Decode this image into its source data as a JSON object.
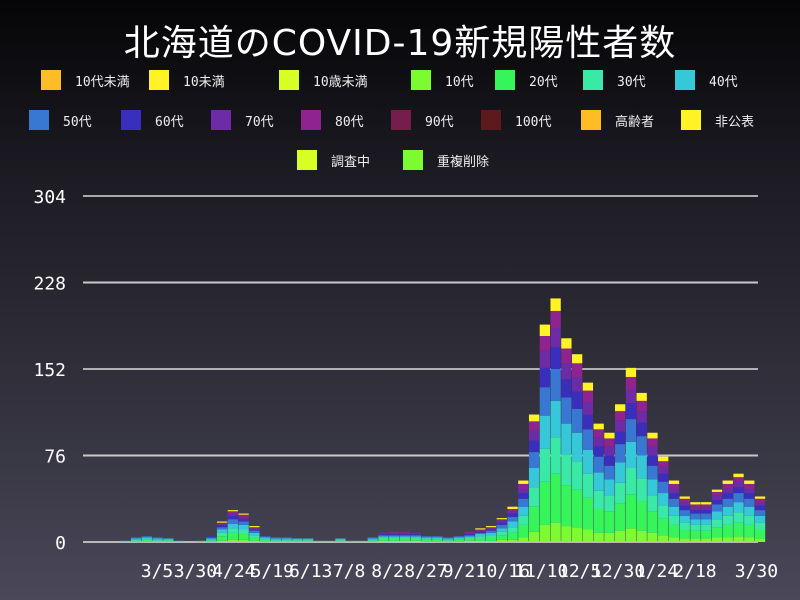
{
  "chart_data": {
    "type": "bar",
    "stacked": true,
    "title": "北海道のCOVID-19新規陽性者数",
    "ylim": [
      0,
      304
    ],
    "yticks": [
      0,
      76,
      152,
      228,
      304
    ],
    "xticks": [
      "3/5",
      "3/30",
      "4/24",
      "5/19",
      "6/13",
      "7/8",
      "8/2",
      "8/27",
      "9/21",
      "10/16",
      "11/10",
      "12/5",
      "12/30",
      "1/24",
      "2/18",
      "3/30"
    ],
    "xtick_dates": [
      "2020-03-05",
      "2020-03-30",
      "2020-04-24",
      "2020-05-19",
      "2020-06-13",
      "2020-07-08",
      "2020-08-02",
      "2020-08-27",
      "2020-09-21",
      "2020-10-16",
      "2020-11-10",
      "2020-12-05",
      "2020-12-30",
      "2021-01-24",
      "2021-02-18",
      "2021-03-30"
    ],
    "grid": true,
    "legend_placement": "top",
    "legend": [
      {
        "name": "10代未満",
        "color": "#ffbd25"
      },
      {
        "name": "10未満",
        "color": "#fff325"
      },
      {
        "name": "10歳未満",
        "color": "#d8ff25"
      },
      {
        "name": "10代",
        "color": "#7cfc30"
      },
      {
        "name": "20代",
        "color": "#36f55a"
      },
      {
        "name": "30代",
        "color": "#3be9a7"
      },
      {
        "name": "40代",
        "color": "#36c8d8"
      },
      {
        "name": "50代",
        "color": "#3878d2"
      },
      {
        "name": "60代",
        "color": "#3a2fbd"
      },
      {
        "name": "70代",
        "color": "#6e2ba6"
      },
      {
        "name": "80代",
        "color": "#8f2490"
      },
      {
        "name": "90代",
        "color": "#761d4c"
      },
      {
        "name": "100代",
        "color": "#5c1a1c"
      },
      {
        "name": "高齢者",
        "color": "#ffbd25"
      },
      {
        "name": "非公表",
        "color": "#fff325"
      },
      {
        "name": "調査中",
        "color": "#d8ff25"
      },
      {
        "name": "重複削除",
        "color": "#7cfc30"
      }
    ],
    "x": [
      "2020-01-27",
      "2020-02-03",
      "2020-02-10",
      "2020-02-17",
      "2020-02-24",
      "2020-03-02",
      "2020-03-09",
      "2020-03-16",
      "2020-03-23",
      "2020-03-30",
      "2020-04-06",
      "2020-04-13",
      "2020-04-20",
      "2020-04-27",
      "2020-05-04",
      "2020-05-11",
      "2020-05-18",
      "2020-05-25",
      "2020-06-01",
      "2020-06-08",
      "2020-06-15",
      "2020-06-22",
      "2020-06-29",
      "2020-07-06",
      "2020-07-13",
      "2020-07-20",
      "2020-07-27",
      "2020-08-03",
      "2020-08-10",
      "2020-08-17",
      "2020-08-24",
      "2020-08-31",
      "2020-09-07",
      "2020-09-14",
      "2020-09-21",
      "2020-09-28",
      "2020-10-05",
      "2020-10-12",
      "2020-10-19",
      "2020-10-26",
      "2020-11-02",
      "2020-11-09",
      "2020-11-16",
      "2020-11-23",
      "2020-11-30",
      "2020-12-07",
      "2020-12-14",
      "2020-12-21",
      "2020-12-28",
      "2021-01-04",
      "2021-01-11",
      "2021-01-18",
      "2021-01-25",
      "2021-02-01",
      "2021-02-08",
      "2021-02-15",
      "2021-02-22",
      "2021-03-01",
      "2021-03-08",
      "2021-03-15",
      "2021-03-22",
      "2021-03-29"
    ],
    "series": [
      {
        "name": "10代",
        "color": "#7cfc30",
        "values": [
          0,
          0,
          0,
          0,
          0,
          0,
          0,
          0,
          0,
          0,
          0,
          1,
          2,
          2,
          1,
          0,
          0,
          0,
          0,
          0,
          0,
          0,
          0,
          0,
          0,
          0,
          1,
          1,
          1,
          1,
          0,
          0,
          0,
          0,
          1,
          1,
          1,
          2,
          2,
          4,
          9,
          15,
          17,
          14,
          13,
          11,
          8,
          8,
          10,
          12,
          10,
          8,
          6,
          4,
          3,
          3,
          3,
          4,
          4,
          5,
          4,
          3
        ]
      },
      {
        "name": "20代",
        "color": "#36f55a",
        "values": [
          0,
          0,
          1,
          1,
          2,
          1,
          1,
          1,
          0,
          1,
          1,
          4,
          6,
          5,
          3,
          2,
          1,
          1,
          1,
          1,
          1,
          1,
          1,
          1,
          1,
          1,
          2,
          2,
          2,
          2,
          2,
          2,
          1,
          2,
          2,
          2,
          3,
          4,
          6,
          11,
          22,
          38,
          43,
          36,
          33,
          28,
          21,
          19,
          24,
          30,
          26,
          19,
          15,
          11,
          8,
          7,
          7,
          9,
          11,
          12,
          11,
          8
        ]
      },
      {
        "name": "30代",
        "color": "#3be9a7",
        "values": [
          0,
          0,
          0,
          1,
          1,
          1,
          1,
          0,
          0,
          0,
          1,
          3,
          4,
          4,
          2,
          1,
          1,
          1,
          1,
          1,
          0,
          0,
          1,
          0,
          0,
          1,
          1,
          1,
          1,
          1,
          1,
          1,
          1,
          1,
          1,
          2,
          2,
          3,
          5,
          8,
          17,
          29,
          32,
          27,
          25,
          21,
          16,
          14,
          18,
          23,
          20,
          14,
          11,
          8,
          6,
          5,
          5,
          7,
          8,
          9,
          8,
          6
        ]
      },
      {
        "name": "40代",
        "color": "#36c8d8",
        "values": [
          0,
          0,
          0,
          1,
          1,
          1,
          1,
          0,
          0,
          0,
          1,
          3,
          4,
          4,
          2,
          1,
          1,
          1,
          1,
          1,
          0,
          0,
          1,
          0,
          0,
          1,
          1,
          1,
          1,
          1,
          1,
          1,
          1,
          1,
          1,
          2,
          2,
          3,
          5,
          8,
          17,
          29,
          32,
          27,
          25,
          21,
          16,
          14,
          18,
          23,
          20,
          14,
          11,
          8,
          6,
          5,
          5,
          7,
          8,
          9,
          8,
          6
        ]
      },
      {
        "name": "50代",
        "color": "#3878d2",
        "values": [
          0,
          0,
          0,
          1,
          1,
          1,
          0,
          0,
          0,
          0,
          1,
          2,
          4,
          3,
          2,
          1,
          1,
          1,
          0,
          0,
          0,
          0,
          0,
          0,
          0,
          1,
          1,
          1,
          1,
          1,
          1,
          1,
          1,
          1,
          1,
          1,
          2,
          3,
          4,
          7,
          14,
          25,
          28,
          23,
          21,
          18,
          14,
          12,
          16,
          20,
          17,
          12,
          10,
          7,
          5,
          5,
          5,
          6,
          7,
          8,
          7,
          5
        ]
      },
      {
        "name": "60代",
        "color": "#3a2fbd",
        "values": [
          0,
          0,
          0,
          0,
          0,
          0,
          0,
          0,
          0,
          0,
          1,
          2,
          3,
          2,
          1,
          1,
          0,
          0,
          0,
          0,
          0,
          0,
          0,
          0,
          0,
          0,
          1,
          1,
          1,
          1,
          0,
          0,
          0,
          0,
          1,
          1,
          1,
          2,
          3,
          5,
          10,
          17,
          19,
          16,
          15,
          13,
          9,
          9,
          11,
          14,
          12,
          9,
          7,
          5,
          4,
          3,
          3,
          4,
          5,
          5,
          5,
          4
        ]
      },
      {
        "name": "70代",
        "color": "#6e2ba6",
        "values": [
          0,
          0,
          0,
          0,
          0,
          0,
          0,
          0,
          0,
          0,
          0,
          1,
          2,
          2,
          1,
          0,
          0,
          0,
          0,
          0,
          0,
          0,
          0,
          0,
          0,
          0,
          1,
          1,
          1,
          1,
          0,
          0,
          0,
          0,
          1,
          1,
          1,
          2,
          2,
          4,
          9,
          15,
          17,
          14,
          13,
          11,
          8,
          8,
          10,
          12,
          10,
          8,
          6,
          4,
          3,
          3,
          3,
          4,
          4,
          5,
          4,
          3
        ]
      },
      {
        "name": "80代",
        "color": "#8f2490",
        "values": [
          0,
          0,
          0,
          0,
          0,
          0,
          0,
          0,
          0,
          0,
          0,
          1,
          2,
          2,
          1,
          0,
          0,
          0,
          0,
          0,
          0,
          0,
          0,
          0,
          0,
          0,
          0,
          1,
          1,
          0,
          0,
          0,
          0,
          0,
          1,
          1,
          1,
          1,
          2,
          4,
          8,
          13,
          15,
          13,
          12,
          10,
          7,
          7,
          8,
          11,
          9,
          7,
          5,
          4,
          3,
          2,
          2,
          3,
          4,
          4,
          4,
          3
        ]
      },
      {
        "name": "非公表",
        "color": "#fff325",
        "values": [
          0,
          0,
          0,
          0,
          0,
          0,
          0,
          0,
          0,
          0,
          0,
          1,
          1,
          1,
          1,
          0,
          0,
          0,
          0,
          0,
          0,
          0,
          0,
          0,
          0,
          0,
          0,
          0,
          0,
          0,
          0,
          0,
          0,
          0,
          0,
          1,
          1,
          1,
          2,
          3,
          6,
          10,
          11,
          9,
          8,
          7,
          5,
          5,
          6,
          8,
          7,
          5,
          4,
          3,
          2,
          2,
          2,
          2,
          3,
          3,
          3,
          2
        ]
      }
    ]
  }
}
